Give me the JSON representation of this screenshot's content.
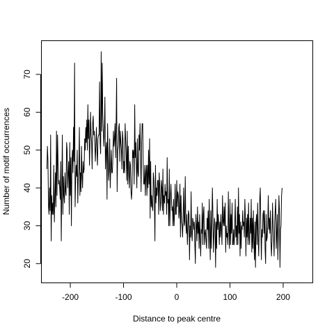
{
  "chart_data": {
    "type": "line",
    "title": "",
    "xlabel": "Distance to peak centre",
    "ylabel": "Number of motif occurrences",
    "xlim": [
      -255,
      255
    ],
    "ylim": [
      15,
      79
    ],
    "grid": false,
    "legend": "none",
    "x_ticks": [
      -200,
      -100,
      0,
      100,
      200
    ],
    "y_ticks": [
      20,
      30,
      40,
      50,
      60,
      70
    ],
    "x_tick_labels": [
      "-200",
      "-100",
      "0",
      "100",
      "200"
    ],
    "y_tick_labels": [
      "20",
      "30",
      "40",
      "50",
      "60",
      "70"
    ],
    "series": [
      {
        "color": "#000000",
        "x_start": -244,
        "x_step": 1,
        "values": [
          45,
          51,
          47,
          35,
          33,
          40,
          34,
          54,
          26,
          38,
          33,
          36,
          33,
          46,
          31,
          37,
          44,
          35,
          55,
          38,
          54,
          46,
          41,
          42,
          40,
          37,
          47,
          26,
          40,
          54,
          33,
          43,
          38,
          36,
          44,
          39,
          38,
          52,
          50,
          40,
          44,
          47,
          33,
          52,
          38,
          48,
          30,
          47,
          50,
          44,
          56,
          47,
          73,
          35,
          42,
          46,
          43,
          50,
          36,
          43,
          45,
          56,
          38,
          44,
          39,
          51,
          43,
          40,
          47,
          44,
          45,
          53,
          50,
          56,
          52,
          58,
          50,
          62,
          53,
          58,
          46,
          52,
          60,
          54,
          52,
          45,
          57,
          59,
          54,
          55,
          52,
          47,
          51,
          56,
          50,
          46,
          53,
          54,
          54,
          68,
          52,
          49,
          76,
          55,
          73,
          59,
          55,
          51,
          55,
          64,
          45,
          50,
          52,
          37,
          57,
          49,
          42,
          45,
          53,
          40,
          45,
          50,
          44,
          44,
          48,
          55,
          51,
          53,
          57,
          48,
          56,
          69,
          39,
          50,
          51,
          56,
          57,
          47,
          55,
          52,
          50,
          45,
          55,
          53,
          44,
          47,
          44,
          57,
          53,
          49,
          42,
          55,
          41,
          51,
          44,
          40,
          47,
          46,
          39,
          37,
          40,
          50,
          48,
          50,
          41,
          62,
          48,
          52,
          46,
          40,
          53,
          44,
          43,
          54,
          50,
          57,
          48,
          39,
          52,
          57,
          57,
          46,
          41,
          41,
          46,
          38,
          44,
          46,
          38,
          46,
          40,
          50,
          41,
          53,
          32,
          47,
          35,
          38,
          35,
          34,
          44,
          42,
          37,
          26,
          46,
          36,
          40,
          38,
          42,
          42,
          33,
          44,
          41,
          34,
          36,
          42,
          40,
          34,
          45,
          33,
          38,
          36,
          41,
          38,
          39,
          33,
          48,
          36,
          37,
          30,
          45,
          30,
          37,
          41,
          37,
          34,
          35,
          30,
          37,
          30,
          34,
          41,
          33,
          33,
          42,
          35,
          39,
          38,
          32,
          34,
          41,
          27,
          38,
          31,
          30,
          27,
          33,
          40,
          30,
          31,
          43,
          31,
          28,
          33,
          25,
          29,
          34,
          33,
          21,
          30,
          27,
          39,
          28,
          26,
          32,
          31,
          29,
          31,
          25,
          20,
          33,
          30,
          26,
          35,
          28,
          31,
          24,
          33,
          27,
          22,
          29,
          28,
          36,
          25,
          33,
          35,
          25,
          28,
          29,
          26,
          24,
          32,
          29,
          34,
          24,
          37,
          27,
          21,
          34,
          24,
          31,
          40,
          33,
          23,
          28,
          32,
          30,
          19,
          31,
          24,
          37,
          29,
          33,
          30,
          25,
          31,
          27,
          33,
          29,
          25,
          38,
          31,
          30,
          35,
          30,
          36,
          23,
          30,
          27,
          28,
          25,
          39,
          29,
          24,
          37,
          25,
          33,
          28,
          36,
          25,
          25,
          29,
          25,
          30,
          37,
          27,
          30,
          25,
          35,
          25,
          40,
          28,
          33,
          22,
          31,
          24,
          30,
          29,
          34,
          30,
          31,
          27,
          37,
          32,
          22,
          32,
          27,
          33,
          25,
          36,
          27,
          25,
          32,
          28,
          37,
          23,
          32,
          24,
          34,
          26,
          21,
          31,
          19,
          31,
          33,
          25,
          36,
          28,
          22,
          29,
          37,
          40,
          30,
          21,
          29,
          27,
          33,
          34,
          28,
          34,
          24,
          20,
          33,
          26,
          27,
          30,
          38,
          29,
          32,
          28,
          34,
          26,
          22,
          26,
          36,
          30,
          27,
          22,
          31,
          34,
          37,
          24,
          28,
          33,
          21,
          28,
          38,
          34,
          19,
          29,
          30,
          38,
          40
        ]
      }
    ]
  }
}
